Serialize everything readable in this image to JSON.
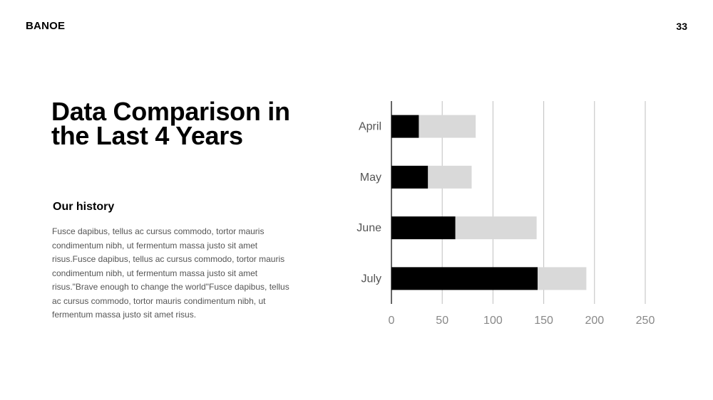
{
  "header": {
    "brand": "BANOE",
    "page_number": "33"
  },
  "content": {
    "title": "Data Comparison in the Last 4 Years",
    "subtitle": "Our history",
    "body": "Fusce dapibus, tellus ac cursus commodo, tortor mauris condimentum nibh, ut fermentum massa justo sit amet risus.Fusce dapibus, tellus ac cursus commodo, tortor mauris condimentum nibh, ut fermentum massa justo sit amet risus.\"Brave enough to change the world\"Fusce dapibus, tellus ac cursus commodo, tortor mauris condimentum nibh, ut fermentum massa justo sit amet risus."
  },
  "chart_data": {
    "type": "bar",
    "orientation": "horizontal",
    "stacked": true,
    "categories": [
      "April",
      "May",
      "June",
      "July"
    ],
    "series": [
      {
        "values": [
          27,
          36,
          63,
          144
        ],
        "color": "#000000"
      },
      {
        "values": [
          56,
          43,
          80,
          48
        ],
        "color": "#d9d9d9"
      }
    ],
    "x_ticks": [
      0,
      50,
      100,
      150,
      200,
      250
    ],
    "xlim": [
      0,
      250
    ],
    "grid": true,
    "tick_color": "#888888",
    "label_color": "#555555",
    "grid_color": "#bfbfbf"
  }
}
